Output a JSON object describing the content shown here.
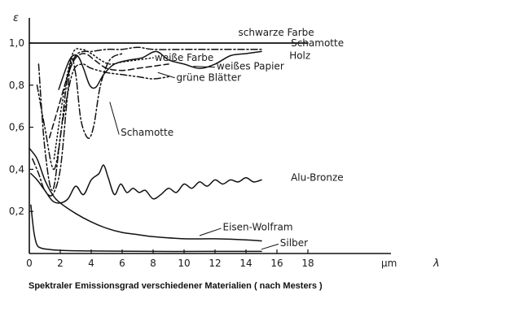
{
  "caption": "Spektraler Emissionsgrad verschiedener Materialien ( nach Mesters )",
  "chart_data": {
    "type": "line",
    "xlabel": "λ",
    "ylabel": "ε",
    "x_unit_label": "µm",
    "xlim": [
      0,
      19
    ],
    "ylim": [
      0,
      1.05
    ],
    "x_ticks": [
      {
        "value": 0,
        "label": "0"
      },
      {
        "value": 2,
        "label": "2"
      },
      {
        "value": 4,
        "label": "4"
      },
      {
        "value": 6,
        "label": "6"
      },
      {
        "value": 8,
        "label": "8"
      },
      {
        "value": 10,
        "label": "10"
      },
      {
        "value": 12,
        "label": "12"
      },
      {
        "value": 14,
        "label": "14"
      },
      {
        "value": 16,
        "label": "16"
      },
      {
        "value": 18,
        "label": "18"
      }
    ],
    "y_ticks": [
      {
        "value": 0.2,
        "label": "0,2"
      },
      {
        "value": 0.4,
        "label": "0,4"
      },
      {
        "value": 0.6,
        "label": "0,6"
      },
      {
        "value": 0.8,
        "label": "0,8"
      },
      {
        "value": 1.0,
        "label": "1,0"
      }
    ],
    "series": [
      {
        "name": "schwarze Farbe",
        "style": "solid",
        "x": [
          0,
          2,
          4,
          6,
          8,
          10,
          12,
          14,
          16,
          18
        ],
        "y": [
          1.0,
          1.0,
          1.0,
          1.0,
          1.0,
          1.0,
          1.0,
          1.0,
          1.0,
          1.0
        ]
      },
      {
        "name": "Schamotte",
        "style": "solid",
        "x": [
          1.9,
          2.6,
          3.1,
          3.5,
          3.9,
          4.3,
          4.8,
          5.5,
          6.5,
          7.3,
          8.2,
          9.0,
          10.0,
          11.0,
          12.0,
          13.0,
          14.0,
          15.0
        ],
        "y": [
          0.78,
          0.92,
          0.94,
          0.88,
          0.8,
          0.79,
          0.85,
          0.9,
          0.92,
          0.93,
          0.96,
          0.92,
          0.9,
          0.88,
          0.9,
          0.94,
          0.95,
          0.96
        ]
      },
      {
        "name": "Holz",
        "style": "dashdot",
        "x": [
          0.6,
          1.0,
          1.5,
          2.0,
          2.5,
          3.0,
          3.5,
          4.0,
          5.0,
          6.0,
          7.0,
          8.0,
          10.0,
          12.0,
          14.0,
          15.0
        ],
        "y": [
          0.9,
          0.5,
          0.3,
          0.55,
          0.85,
          0.94,
          0.96,
          0.96,
          0.97,
          0.97,
          0.98,
          0.97,
          0.97,
          0.97,
          0.97,
          0.97
        ]
      },
      {
        "name": "weiße Farbe",
        "style": "dotted",
        "x": [
          1.6,
          2.2,
          2.8,
          3.4,
          4.0,
          4.6,
          5.2,
          6.0,
          7.0,
          8.0
        ],
        "y": [
          0.45,
          0.75,
          0.95,
          0.97,
          0.95,
          0.92,
          0.9,
          0.91,
          0.92,
          0.93
        ]
      },
      {
        "name": "weißes Papier",
        "style": "dashed",
        "x": [
          1.3,
          1.9,
          2.5,
          3.0,
          3.6,
          4.2,
          5.0,
          6.0,
          7.0,
          8.0,
          9.0
        ],
        "y": [
          0.55,
          0.7,
          0.85,
          0.93,
          0.95,
          0.92,
          0.88,
          0.87,
          0.88,
          0.89,
          0.9
        ]
      },
      {
        "name": "grüne Blätter",
        "style": "dashdotdot",
        "x": [
          0.5,
          1.0,
          1.6,
          2.2,
          2.8,
          3.4,
          4.0,
          5.0,
          6.0,
          7.0,
          8.0,
          9.0
        ],
        "y": [
          0.8,
          0.6,
          0.4,
          0.65,
          0.86,
          0.9,
          0.88,
          0.86,
          0.85,
          0.84,
          0.83,
          0.84
        ]
      },
      {
        "name": "Schamotte",
        "style": "dashdot",
        "x": [
          0.2,
          0.6,
          1.0,
          1.5,
          2.0,
          2.4,
          2.7,
          3.0,
          3.3,
          3.6,
          3.9,
          4.2,
          4.6,
          5.2,
          6.0
        ],
        "y": [
          0.45,
          0.38,
          0.3,
          0.28,
          0.4,
          0.7,
          0.92,
          0.85,
          0.65,
          0.57,
          0.55,
          0.62,
          0.8,
          0.92,
          0.95
        ]
      },
      {
        "name": "Alu-Bronze",
        "style": "solid",
        "x": [
          0.1,
          0.5,
          1.0,
          1.5,
          2.0,
          2.5,
          3.0,
          3.5,
          4.0,
          4.5,
          4.8,
          5.1,
          5.5,
          5.9,
          6.3,
          6.7,
          7.1,
          7.5,
          8.0,
          8.5,
          9.0,
          9.5,
          10.0,
          10.5,
          11.0,
          11.5,
          12.0,
          12.5,
          13.0,
          13.5,
          14.0,
          14.5,
          15.0
        ],
        "y": [
          0.38,
          0.35,
          0.3,
          0.25,
          0.24,
          0.26,
          0.32,
          0.28,
          0.35,
          0.38,
          0.42,
          0.36,
          0.28,
          0.33,
          0.29,
          0.31,
          0.29,
          0.3,
          0.26,
          0.28,
          0.31,
          0.29,
          0.33,
          0.31,
          0.34,
          0.32,
          0.35,
          0.33,
          0.35,
          0.34,
          0.36,
          0.34,
          0.35
        ]
      },
      {
        "name": "Eisen-Wolfram",
        "style": "solid",
        "x": [
          0,
          0.5,
          1.0,
          1.5,
          2.0,
          3.0,
          4.0,
          5.0,
          6.0,
          7.0,
          8.0,
          10.0,
          12.0,
          14.0,
          15.0
        ],
        "y": [
          0.5,
          0.45,
          0.35,
          0.28,
          0.24,
          0.19,
          0.15,
          0.12,
          0.1,
          0.09,
          0.08,
          0.07,
          0.07,
          0.065,
          0.06
        ]
      },
      {
        "name": "Silber",
        "style": "solid",
        "x": [
          0.1,
          0.3,
          0.5,
          0.8,
          1.2,
          2.0,
          4.0,
          8.0,
          12.0,
          15.0
        ],
        "y": [
          0.23,
          0.1,
          0.04,
          0.025,
          0.02,
          0.015,
          0.012,
          0.01,
          0.01,
          0.01
        ]
      }
    ],
    "annotations": [
      {
        "text": "schwarze Farbe",
        "target": "schwarze Farbe",
        "x": 13.5,
        "y": 1.035
      },
      {
        "text": "Schamotte",
        "target": "Schamotte",
        "x": 16.9,
        "y": 0.985
      },
      {
        "text": "Holz",
        "target": "Holz",
        "x": 16.8,
        "y": 0.925
      },
      {
        "text": "weiße Farbe",
        "target": "weiße Farbe",
        "x": 8.1,
        "y": 0.915
      },
      {
        "text": "weißes Papier",
        "target": "weißes Papier",
        "x": 12.1,
        "y": 0.875
      },
      {
        "text": "grüne Blätter",
        "target": "grüne Blätter",
        "x": 9.5,
        "y": 0.82
      },
      {
        "text": "Schamotte",
        "target": "Schamotte",
        "x": 5.9,
        "y": 0.56
      },
      {
        "text": "Alu-Bronze",
        "target": "Alu-Bronze",
        "x": 16.9,
        "y": 0.345
      },
      {
        "text": "Eisen-Wolfram",
        "target": "Eisen-Wolfram",
        "x": 12.5,
        "y": 0.11
      },
      {
        "text": "Silber",
        "target": "Silber",
        "x": 16.2,
        "y": 0.035
      }
    ]
  }
}
